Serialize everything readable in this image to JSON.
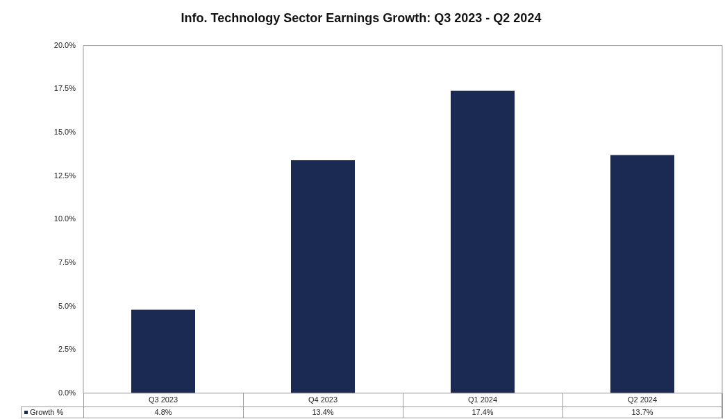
{
  "chart_data": {
    "type": "bar",
    "title": "Info. Technology Sector Earnings Growth: Q3 2023 - Q2 2024",
    "categories": [
      "Q3 2023",
      "Q4 2023",
      "Q1 2024",
      "Q2 2024"
    ],
    "series": [
      {
        "name": "Growth %",
        "color": "#1b2a52",
        "values": [
          4.8,
          13.4,
          17.4,
          13.7
        ],
        "value_labels": [
          "4.8%",
          "13.4%",
          "17.4%",
          "13.7%"
        ]
      }
    ],
    "ylim": [
      0,
      20
    ],
    "yticks": [
      {
        "value": 0,
        "label": "0.0%"
      },
      {
        "value": 2.5,
        "label": "2.5%"
      },
      {
        "value": 5,
        "label": "5.0%"
      },
      {
        "value": 7.5,
        "label": "7.5%"
      },
      {
        "value": 10,
        "label": "10.0%"
      },
      {
        "value": 12.5,
        "label": "12.5%"
      },
      {
        "value": 15,
        "label": "15.0%"
      },
      {
        "value": 17.5,
        "label": "17.5%"
      },
      {
        "value": 20,
        "label": "20.0%"
      }
    ],
    "grid": false,
    "legend": "bottom left"
  }
}
